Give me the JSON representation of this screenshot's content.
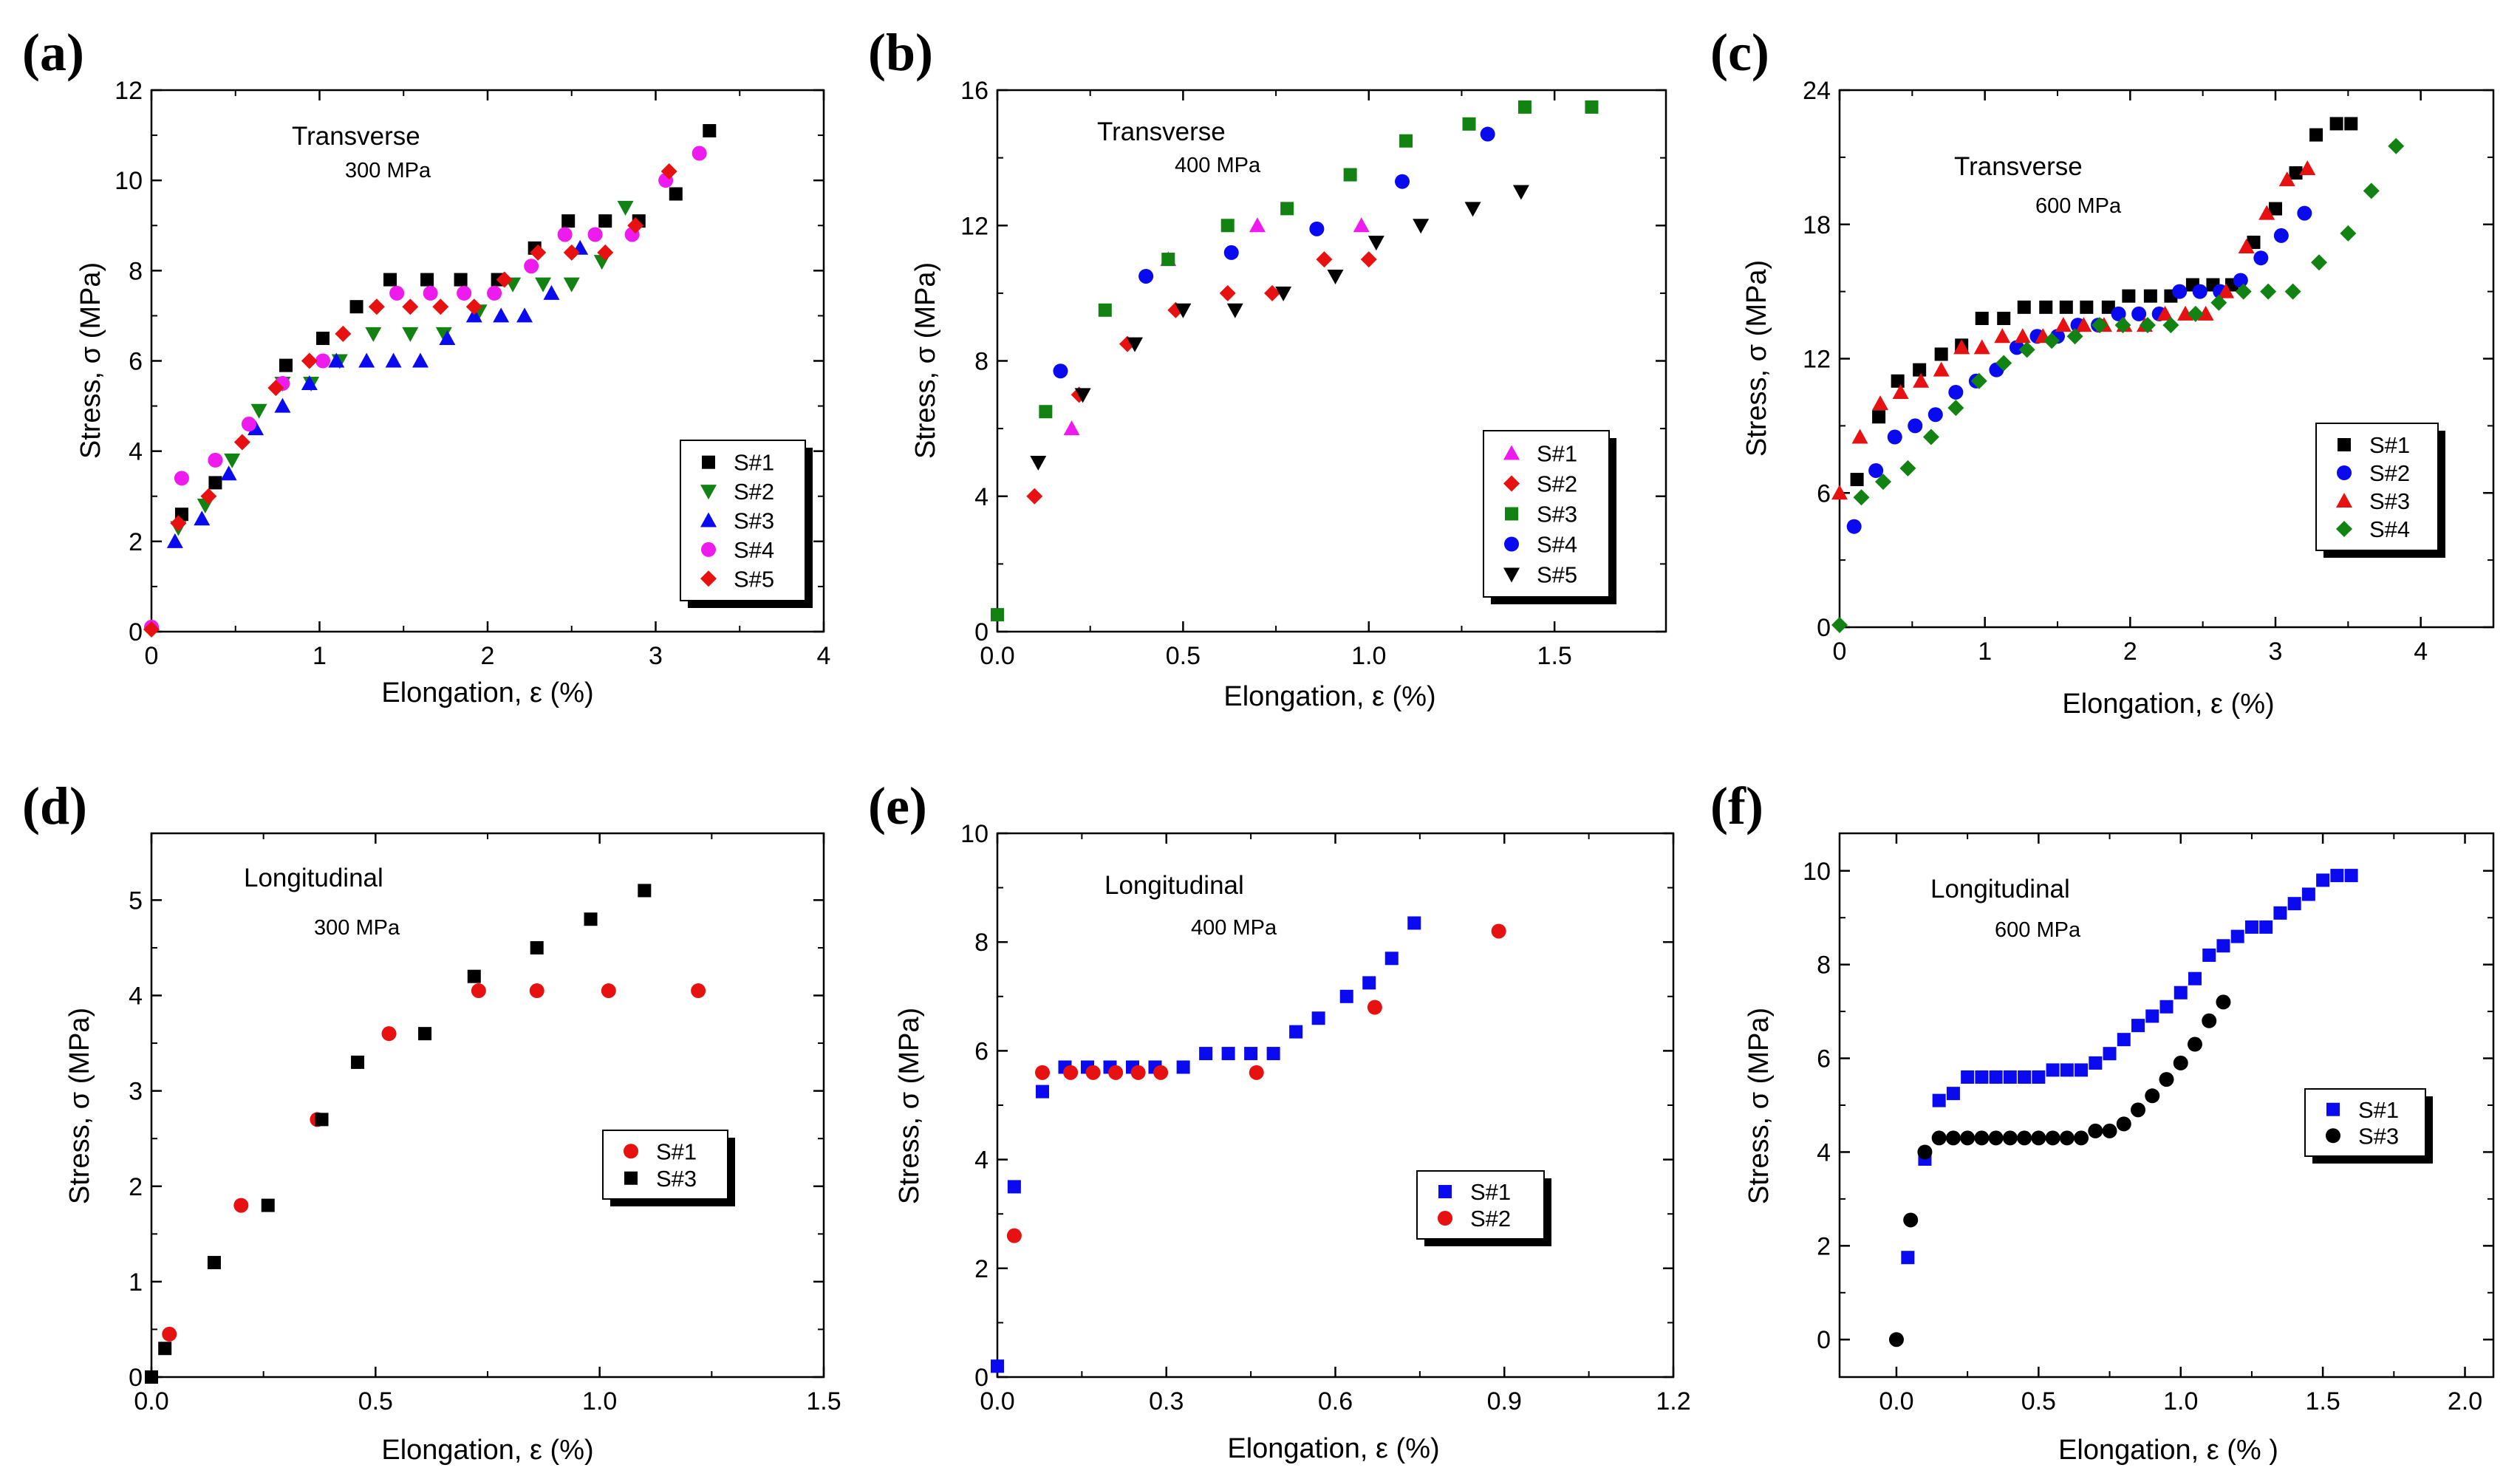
{
  "chart_data": [
    {
      "type": "scatter",
      "panel_label": "(a)",
      "xlabel": "Elongation, ε (%)",
      "ylabel": "Stress, σ (MPa)",
      "xlim": [
        0,
        4
      ],
      "ylim": [
        0,
        12
      ],
      "xticks": [
        "0",
        "1",
        "2",
        "3",
        "4"
      ],
      "yticks": [
        "0",
        "2",
        "4",
        "6",
        "8",
        "10",
        "12"
      ],
      "annotation_title": "Transverse",
      "annotation_sub": "300 MPa",
      "legend_position": "bottom-right",
      "series": [
        {
          "name": "S#1",
          "marker": "square",
          "color": "#000000",
          "x": [
            0.18,
            0.38,
            0.8,
            1.02,
            1.22,
            1.42,
            1.64,
            1.84,
            2.06,
            2.28,
            2.48,
            2.7,
            2.9,
            3.12,
            3.32
          ],
          "y": [
            2.6,
            3.3,
            5.9,
            6.5,
            7.2,
            7.8,
            7.8,
            7.8,
            7.8,
            8.5,
            9.1,
            9.1,
            9.1,
            9.7,
            11.1
          ]
        },
        {
          "name": "S#2",
          "marker": "triangle-down",
          "color": "#128212",
          "x": [
            0.16,
            0.32,
            0.48,
            0.64,
            0.78,
            0.95,
            1.12,
            1.32,
            1.54,
            1.74,
            1.95,
            2.15,
            2.33,
            2.5,
            2.68,
            2.82
          ],
          "y": [
            2.3,
            2.8,
            3.8,
            4.9,
            5.5,
            5.5,
            6.0,
            6.6,
            6.6,
            6.6,
            7.1,
            7.7,
            7.7,
            7.7,
            8.2,
            9.4
          ]
        },
        {
          "name": "S#3",
          "marker": "triangle-up",
          "color": "#0a0af0",
          "x": [
            0.14,
            0.3,
            0.46,
            0.62,
            0.78,
            0.94,
            1.1,
            1.28,
            1.44,
            1.6,
            1.76,
            1.92,
            2.08,
            2.22,
            2.38,
            2.55
          ],
          "y": [
            2.0,
            2.5,
            3.5,
            4.5,
            5.0,
            5.5,
            6.0,
            6.0,
            6.0,
            6.0,
            6.5,
            7.0,
            7.0,
            7.0,
            7.5,
            8.5
          ]
        },
        {
          "name": "S#4",
          "marker": "circle",
          "color": "#ee1bee",
          "x": [
            0.0,
            0.18,
            0.38,
            0.58,
            0.78,
            1.02,
            1.46,
            1.66,
            1.86,
            2.04,
            2.26,
            2.46,
            2.64,
            2.86,
            3.06,
            3.26
          ],
          "y": [
            0.1,
            3.4,
            3.8,
            4.6,
            5.5,
            6.0,
            7.5,
            7.5,
            7.5,
            7.5,
            8.1,
            8.8,
            8.8,
            8.8,
            10.0,
            10.6
          ]
        },
        {
          "name": "S#5",
          "marker": "diamond",
          "color": "#e71111",
          "x": [
            0.0,
            0.16,
            0.34,
            0.54,
            0.74,
            0.94,
            1.14,
            1.34,
            1.54,
            1.72,
            1.92,
            2.1,
            2.3,
            2.5,
            2.7,
            2.88,
            3.08
          ],
          "y": [
            0.05,
            2.4,
            3.0,
            4.2,
            5.4,
            6.0,
            6.6,
            7.2,
            7.2,
            7.2,
            7.2,
            7.8,
            8.4,
            8.4,
            8.4,
            9.0,
            10.2
          ]
        }
      ]
    },
    {
      "type": "scatter",
      "panel_label": "(b)",
      "xlabel": "Elongation, ε (%)",
      "ylabel": "Stress, σ (MPa)",
      "xlim": [
        0,
        1.8
      ],
      "ylim": [
        0,
        16
      ],
      "xticks": [
        "0.0",
        "0.5",
        "1.0",
        "1.5"
      ],
      "yticks": [
        "0",
        "4",
        "8",
        "12",
        "16"
      ],
      "annotation_title": "Transverse",
      "annotation_sub": "400 MPa",
      "legend_position": "bottom-right",
      "series": [
        {
          "name": "S#1",
          "marker": "triangle-up",
          "color": "#ee1bee",
          "x": [
            0.2,
            0.46,
            0.7,
            0.98
          ],
          "y": [
            6.0,
            11.0,
            12.0,
            12.0
          ]
        },
        {
          "name": "S#2",
          "marker": "diamond",
          "color": "#e71111",
          "x": [
            0.1,
            0.22,
            0.35,
            0.48,
            0.62,
            0.74,
            0.88,
            1.0
          ],
          "y": [
            4.0,
            7.0,
            8.5,
            9.5,
            10.0,
            10.0,
            11.0,
            11.0
          ]
        },
        {
          "name": "S#3",
          "marker": "square",
          "color": "#128212",
          "x": [
            0.0,
            0.13,
            0.29,
            0.46,
            0.62,
            0.78,
            0.95,
            1.1,
            1.27,
            1.42,
            1.6
          ],
          "y": [
            0.5,
            6.5,
            9.5,
            11.0,
            12.0,
            12.5,
            13.5,
            14.5,
            15.0,
            15.5,
            15.5
          ]
        },
        {
          "name": "S#4",
          "marker": "circle",
          "color": "#0a0af0",
          "x": [
            0.17,
            0.4,
            0.63,
            0.86,
            1.09,
            1.32
          ],
          "y": [
            7.7,
            10.5,
            11.2,
            11.9,
            13.3,
            14.7
          ]
        },
        {
          "name": "S#5",
          "marker": "triangle-down",
          "color": "#000000",
          "x": [
            0.11,
            0.23,
            0.37,
            0.5,
            0.64,
            0.77,
            0.91,
            1.02,
            1.14,
            1.28,
            1.41
          ],
          "y": [
            5.0,
            7.0,
            8.5,
            9.5,
            9.5,
            10.0,
            10.5,
            11.5,
            12.0,
            12.5,
            13.0
          ]
        }
      ]
    },
    {
      "type": "scatter",
      "panel_label": "(c)",
      "xlabel": "Elongation, ε (%)",
      "ylabel": "Stress, σ (MPa)",
      "xlim": [
        0,
        4.5
      ],
      "ylim": [
        0,
        24
      ],
      "xticks": [
        "0",
        "1",
        "2",
        "3",
        "4"
      ],
      "yticks": [
        "0",
        "6",
        "12",
        "18",
        "24"
      ],
      "annotation_title": "Transverse",
      "annotation_sub": "600 MPa",
      "legend_position": "bottom-right",
      "series": [
        {
          "name": "S#1",
          "marker": "square",
          "color": "#000000",
          "x": [
            0.12,
            0.27,
            0.4,
            0.55,
            0.7,
            0.84,
            0.98,
            1.13,
            1.27,
            1.42,
            1.56,
            1.7,
            1.85,
            1.99,
            2.14,
            2.28,
            2.43,
            2.57,
            2.7,
            2.85,
            3.0,
            3.14,
            3.28,
            3.42,
            3.52
          ],
          "y": [
            6.6,
            9.4,
            11.0,
            11.5,
            12.2,
            12.6,
            13.8,
            13.8,
            14.3,
            14.3,
            14.3,
            14.3,
            14.3,
            14.8,
            14.8,
            14.8,
            15.3,
            15.3,
            15.3,
            17.2,
            18.7,
            20.3,
            22.0,
            22.5,
            22.5
          ]
        },
        {
          "name": "S#2",
          "marker": "circle",
          "color": "#0a0af0",
          "x": [
            0.1,
            0.25,
            0.38,
            0.52,
            0.66,
            0.8,
            0.94,
            1.08,
            1.22,
            1.36,
            1.5,
            1.64,
            1.78,
            1.92,
            2.06,
            2.2,
            2.34,
            2.48,
            2.62,
            2.76,
            2.9,
            3.04,
            3.2
          ],
          "y": [
            4.5,
            7.0,
            8.5,
            9.0,
            9.5,
            10.5,
            11.0,
            11.5,
            12.5,
            13.0,
            13.0,
            13.5,
            13.5,
            14.0,
            14.0,
            14.0,
            15.0,
            15.0,
            15.0,
            15.5,
            16.5,
            17.5,
            18.5
          ]
        },
        {
          "name": "S#3",
          "marker": "triangle-up",
          "color": "#e71111",
          "x": [
            0.0,
            0.14,
            0.28,
            0.42,
            0.56,
            0.7,
            0.84,
            0.98,
            1.12,
            1.26,
            1.4,
            1.54,
            1.68,
            1.82,
            1.96,
            2.1,
            2.24,
            2.38,
            2.52,
            2.66,
            2.8,
            2.94,
            3.08,
            3.22
          ],
          "y": [
            6.0,
            8.5,
            10.0,
            10.5,
            11.0,
            11.5,
            12.5,
            12.5,
            13.0,
            13.0,
            13.0,
            13.5,
            13.5,
            13.5,
            13.5,
            13.5,
            14.0,
            14.0,
            14.0,
            15.0,
            17.0,
            18.5,
            20.0,
            20.5
          ]
        },
        {
          "name": "S#4",
          "marker": "diamond",
          "color": "#128212",
          "x": [
            0.0,
            0.15,
            0.3,
            0.47,
            0.63,
            0.8,
            0.96,
            1.13,
            1.29,
            1.46,
            1.62,
            1.79,
            1.95,
            2.12,
            2.28,
            2.45,
            2.61,
            2.78,
            2.95,
            3.12,
            3.3,
            3.5,
            3.66,
            3.83
          ],
          "y": [
            0.1,
            5.8,
            6.5,
            7.1,
            8.5,
            9.8,
            11.0,
            11.8,
            12.4,
            12.8,
            13.0,
            13.5,
            13.5,
            13.5,
            13.5,
            14.0,
            14.5,
            15.0,
            15.0,
            15.0,
            16.3,
            17.6,
            19.5,
            21.5
          ]
        }
      ]
    },
    {
      "type": "scatter",
      "panel_label": "(d)",
      "xlabel": "Elongation, ε (%)",
      "ylabel": "Stress, σ (MPa)",
      "xlim": [
        0,
        1.5
      ],
      "ylim": [
        0,
        5.7
      ],
      "xticks": [
        "0.0",
        "0.5",
        "1.0",
        "1.5"
      ],
      "yticks": [
        "0",
        "1",
        "2",
        "3",
        "4",
        "5"
      ],
      "annotation_title": "Longitudinal",
      "annotation_sub": "300 MPa",
      "legend_position": "bottom-right",
      "series": [
        {
          "name": "S#1",
          "marker": "circle",
          "color": "#e71111",
          "x": [
            0.04,
            0.2,
            0.37,
            0.53,
            0.73,
            0.86,
            1.02,
            1.22
          ],
          "y": [
            0.45,
            1.8,
            2.7,
            3.6,
            4.05,
            4.05,
            4.05,
            4.05
          ]
        },
        {
          "name": "S#3",
          "marker": "square",
          "color": "#000000",
          "x": [
            0.0,
            0.03,
            0.14,
            0.26,
            0.38,
            0.46,
            0.61,
            0.72,
            0.86,
            0.98,
            1.1
          ],
          "y": [
            0.0,
            0.3,
            1.2,
            1.8,
            2.7,
            3.3,
            3.6,
            4.2,
            4.5,
            4.8,
            5.1
          ]
        }
      ]
    },
    {
      "type": "scatter",
      "panel_label": "(e)",
      "xlabel": "Elongation, ε (%)",
      "ylabel": "Stress, σ (MPa)",
      "xlim": [
        0,
        1.2
      ],
      "ylim": [
        0,
        10
      ],
      "xticks": [
        "0.0",
        "0.3",
        "0.6",
        "0.9",
        "1.2"
      ],
      "yticks": [
        "0",
        "2",
        "4",
        "6",
        "8",
        "10"
      ],
      "annotation_title": "Longitudinal",
      "annotation_sub": "400 MPa",
      "legend_position": "bottom-right",
      "series": [
        {
          "name": "S#1",
          "marker": "square",
          "color": "#0a0af0",
          "x": [
            0.0,
            0.03,
            0.08,
            0.12,
            0.16,
            0.2,
            0.24,
            0.28,
            0.33,
            0.37,
            0.41,
            0.45,
            0.49,
            0.53,
            0.57,
            0.62,
            0.66,
            0.7,
            0.74
          ],
          "y": [
            0.2,
            3.5,
            5.25,
            5.7,
            5.7,
            5.7,
            5.7,
            5.7,
            5.7,
            5.95,
            5.95,
            5.95,
            5.95,
            6.35,
            6.6,
            7.0,
            7.25,
            7.7,
            8.35
          ]
        },
        {
          "name": "S#2",
          "marker": "circle",
          "color": "#e71111",
          "x": [
            0.03,
            0.08,
            0.13,
            0.17,
            0.21,
            0.25,
            0.29,
            0.46,
            0.67,
            0.89
          ],
          "y": [
            2.6,
            5.6,
            5.6,
            5.6,
            5.6,
            5.6,
            5.6,
            5.6,
            6.8,
            8.2
          ]
        }
      ]
    },
    {
      "type": "scatter",
      "panel_label": "(f)",
      "xlabel": "Elongation, ε (% )",
      "ylabel": "Stress, σ (MPa)",
      "xlim": [
        -0.2,
        2.1
      ],
      "ylim": [
        -0.8,
        10.8
      ],
      "xticks": [
        "0.0",
        "0.5",
        "1.0",
        "1.5",
        "2.0"
      ],
      "yticks": [
        "0",
        "2",
        "4",
        "6",
        "8",
        "10"
      ],
      "annotation_title": "Longitudinal",
      "annotation_sub": "600 MPa",
      "legend_position": "right",
      "series": [
        {
          "name": "S#1",
          "marker": "square",
          "color": "#0a0af0",
          "x": [
            0.04,
            0.1,
            0.15,
            0.2,
            0.25,
            0.3,
            0.35,
            0.4,
            0.45,
            0.5,
            0.55,
            0.6,
            0.65,
            0.7,
            0.75,
            0.8,
            0.85,
            0.9,
            0.95,
            1.0,
            1.05,
            1.1,
            1.15,
            1.2,
            1.25,
            1.3,
            1.35,
            1.4,
            1.45,
            1.5,
            1.55,
            1.6
          ],
          "y": [
            1.75,
            3.85,
            5.1,
            5.25,
            5.6,
            5.6,
            5.6,
            5.6,
            5.6,
            5.6,
            5.75,
            5.75,
            5.75,
            5.9,
            6.1,
            6.4,
            6.7,
            6.9,
            7.1,
            7.4,
            7.7,
            8.2,
            8.4,
            8.6,
            8.8,
            8.8,
            9.1,
            9.3,
            9.5,
            9.8,
            9.9,
            9.9
          ]
        },
        {
          "name": "S#3",
          "marker": "circle",
          "color": "#000000",
          "x": [
            0.0,
            0.05,
            0.1,
            0.15,
            0.2,
            0.25,
            0.3,
            0.35,
            0.4,
            0.45,
            0.5,
            0.55,
            0.6,
            0.65,
            0.7,
            0.75,
            0.8,
            0.85,
            0.9,
            0.95,
            1.0,
            1.05,
            1.1,
            1.15
          ],
          "y": [
            0.0,
            2.55,
            4.0,
            4.3,
            4.3,
            4.3,
            4.3,
            4.3,
            4.3,
            4.3,
            4.3,
            4.3,
            4.3,
            4.3,
            4.45,
            4.45,
            4.6,
            4.9,
            5.2,
            5.55,
            5.9,
            6.3,
            6.8,
            7.2
          ]
        }
      ]
    }
  ]
}
